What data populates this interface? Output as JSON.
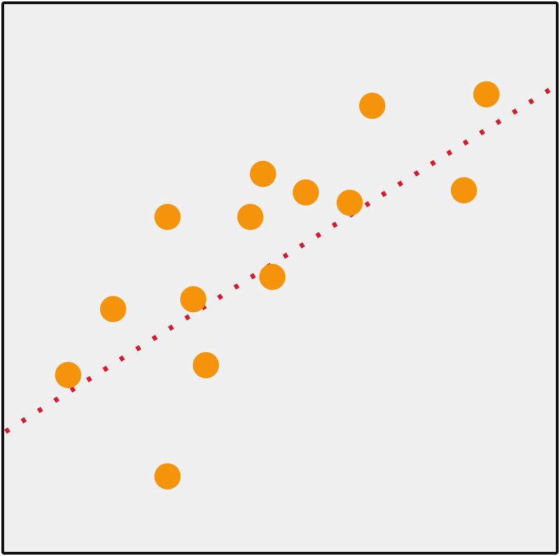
{
  "chart_data": {
    "type": "scatter",
    "title": "",
    "xlabel": "",
    "ylabel": "",
    "grid": false,
    "legend": "none",
    "xlim": [
      0,
      100
    ],
    "ylim": [
      0,
      100
    ],
    "series": [
      {
        "x": [
          11.4,
          19.6,
          29.5,
          29.5,
          34.2,
          36.5,
          44.6,
          46.9,
          48.6,
          54.7,
          62.7,
          66.8,
          83.5,
          87.6
        ],
        "y": [
          32.2,
          44.3,
          61.2,
          13.6,
          46.1,
          34.0,
          61.2,
          69.1,
          50.2,
          65.7,
          63.8,
          81.6,
          66.1,
          83.7
        ]
      }
    ],
    "trendline": {
      "style": "dotted",
      "x": [
        0,
        100
      ],
      "y": [
        21.8,
        85.1
      ]
    },
    "colors": {
      "background": "#f0f0f0",
      "frame": "#111111",
      "marker": "#f5930b",
      "trendline": "#d8192c"
    }
  }
}
